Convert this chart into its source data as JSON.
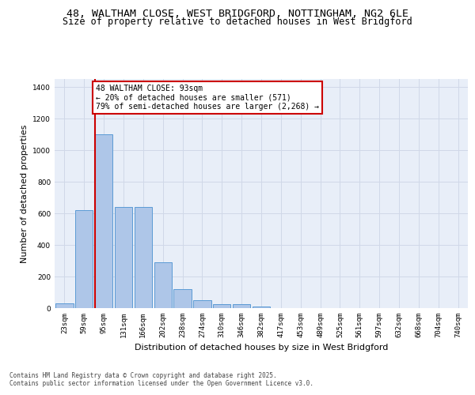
{
  "title_line1": "48, WALTHAM CLOSE, WEST BRIDGFORD, NOTTINGHAM, NG2 6LE",
  "title_line2": "Size of property relative to detached houses in West Bridgford",
  "xlabel": "Distribution of detached houses by size in West Bridgford",
  "ylabel": "Number of detached properties",
  "categories": [
    "23sqm",
    "59sqm",
    "95sqm",
    "131sqm",
    "166sqm",
    "202sqm",
    "238sqm",
    "274sqm",
    "310sqm",
    "346sqm",
    "382sqm",
    "417sqm",
    "453sqm",
    "489sqm",
    "525sqm",
    "561sqm",
    "597sqm",
    "632sqm",
    "668sqm",
    "704sqm",
    "740sqm"
  ],
  "values": [
    30,
    620,
    1100,
    640,
    640,
    290,
    120,
    50,
    25,
    25,
    10,
    0,
    0,
    0,
    0,
    0,
    0,
    0,
    0,
    0,
    0
  ],
  "bar_color": "#aec6e8",
  "bar_edge_color": "#5b9bd5",
  "property_line_index": 2,
  "annotation_title": "48 WALTHAM CLOSE: 93sqm",
  "annotation_line2": "← 20% of detached houses are smaller (571)",
  "annotation_line3": "79% of semi-detached houses are larger (2,268) →",
  "annotation_box_color": "#ffffff",
  "annotation_box_edge": "#cc0000",
  "red_line_color": "#cc0000",
  "grid_color": "#d0d8e8",
  "background_color": "#e8eef8",
  "ylim": [
    0,
    1450
  ],
  "yticks": [
    0,
    200,
    400,
    600,
    800,
    1000,
    1200,
    1400
  ],
  "footer_line1": "Contains HM Land Registry data © Crown copyright and database right 2025.",
  "footer_line2": "Contains public sector information licensed under the Open Government Licence v3.0.",
  "title_fontsize": 9.5,
  "subtitle_fontsize": 8.5,
  "tick_fontsize": 6.5,
  "ylabel_fontsize": 8,
  "xlabel_fontsize": 8,
  "annotation_fontsize": 7,
  "footer_fontsize": 5.5
}
